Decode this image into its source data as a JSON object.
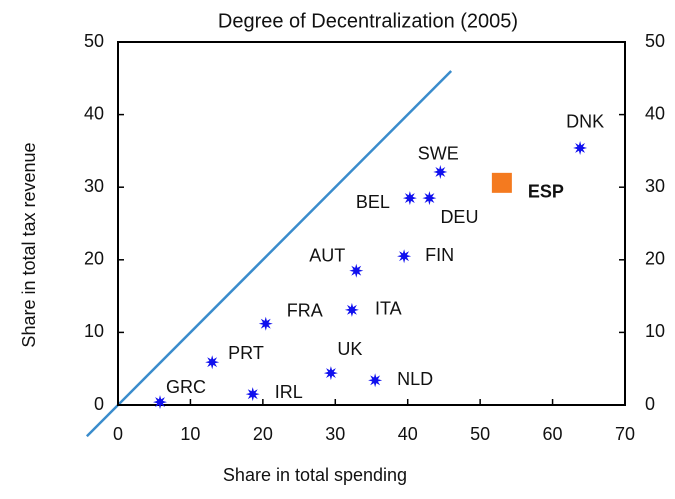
{
  "chart_data": {
    "type": "scatter",
    "title": "Degree of Decentralization (2005)",
    "x_label": "Share in total spending",
    "y_label": "Share in total tax revenue",
    "labels": [
      "GRC",
      "PRT",
      "IRL",
      "FRA",
      "UK",
      "NLD",
      "ITA",
      "AUT",
      "FIN",
      "BEL",
      "DEU",
      "SWE",
      "ESP",
      "DNK"
    ],
    "x": [
      5.8,
      13,
      18.6,
      20.4,
      29.4,
      35.5,
      32.3,
      32.9,
      39.5,
      40.3,
      43,
      44.5,
      53,
      63.8
    ],
    "values": [
      0.4,
      5.9,
      1.5,
      11.2,
      4.4,
      3.4,
      13.1,
      18.5,
      20.5,
      28.5,
      28.5,
      32.1,
      30.6,
      35.4
    ],
    "markers": [
      "star",
      "star",
      "star",
      "star",
      "star",
      "star",
      "star",
      "star",
      "star",
      "star",
      "star",
      "star",
      "square",
      "star"
    ],
    "marker_colors": [
      "#1010ee",
      "#1010ee",
      "#1010ee",
      "#1010ee",
      "#1010ee",
      "#1010ee",
      "#1010ee",
      "#1010ee",
      "#1010ee",
      "#1010ee",
      "#1010ee",
      "#1010ee",
      "#f47a1f",
      "#1010ee"
    ],
    "line_color": "#3a8ccc",
    "xlim": [
      0,
      70
    ],
    "xticks": [
      0,
      10,
      20,
      30,
      40,
      50,
      60,
      70
    ],
    "ylim": [
      0,
      50
    ],
    "yticks": [
      0,
      10,
      20,
      30,
      40,
      50
    ],
    "y2lim": [
      0,
      50
    ],
    "y2ticks": [
      0,
      10,
      20,
      30,
      40,
      50
    ]
  }
}
